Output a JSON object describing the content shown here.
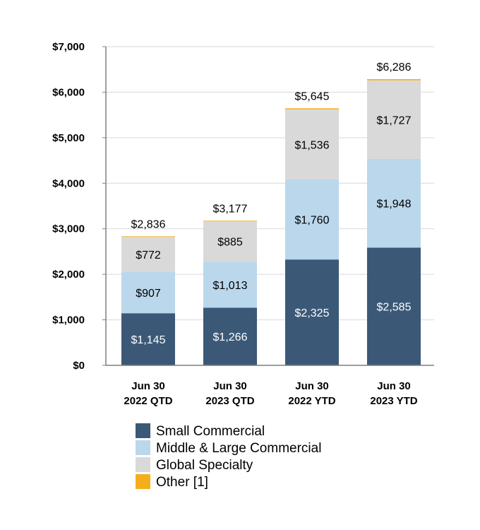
{
  "chart_data": {
    "type": "bar",
    "stacked": true,
    "categories": [
      [
        "Jun 30",
        "2022 QTD"
      ],
      [
        "Jun 30",
        "2023 QTD"
      ],
      [
        "Jun 30",
        "2022 YTD"
      ],
      [
        "Jun 30",
        "2023 YTD"
      ]
    ],
    "series": [
      {
        "name": "Small Commercial",
        "color": "#3b5977",
        "label_color": "#ffffff",
        "values": [
          1145,
          1266,
          2325,
          2585
        ],
        "labels": [
          "$1,145",
          "$1,266",
          "$2,325",
          "$2,585"
        ]
      },
      {
        "name": "Middle & Large Commercial",
        "color": "#bad7ec",
        "label_color": "#000000",
        "values": [
          907,
          1013,
          1760,
          1948
        ],
        "labels": [
          "$907",
          "$1,013",
          "$1,760",
          "$1,948"
        ]
      },
      {
        "name": "Global Specialty",
        "color": "#d9d9d9",
        "label_color": "#000000",
        "values": [
          772,
          885,
          1536,
          1727
        ],
        "labels": [
          "$772",
          "$885",
          "$1,536",
          "$1,727"
        ]
      },
      {
        "name": "Other [1]",
        "color": "#f5ae1b",
        "label_color": "#000000",
        "values": [
          12,
          13,
          24,
          26
        ],
        "labels": [
          "",
          "",
          "",
          ""
        ]
      }
    ],
    "totals": [
      "$2,836",
      "$3,177",
      "$5,645",
      "$6,286"
    ],
    "total_values": [
      2836,
      3177,
      5645,
      6286
    ],
    "ylim": [
      0,
      7000
    ],
    "yticks": [
      0,
      1000,
      2000,
      3000,
      4000,
      5000,
      6000,
      7000
    ],
    "ytick_labels": [
      "$0",
      "$1,000",
      "$2,000",
      "$3,000",
      "$4,000",
      "$5,000",
      "$6,000",
      "$7,000"
    ],
    "grid": true,
    "legend": "bottom",
    "xlabel": "",
    "ylabel": "",
    "title": ""
  }
}
